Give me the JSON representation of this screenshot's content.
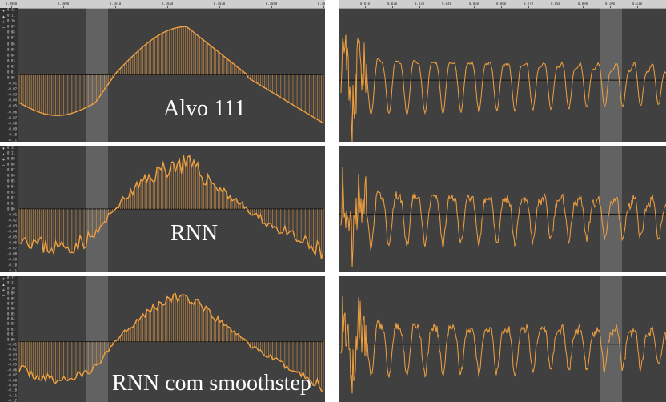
{
  "colors": {
    "background": "#404040",
    "ruler": "#cfcfcf",
    "waveform": "#f0a040",
    "selection": "#ffffff"
  },
  "left_ruler_ticks": [
    "0.0080",
    "0.1000",
    "0.1010",
    "0.1020",
    "0.1030",
    "0.1040",
    "0.1050"
  ],
  "right_ruler_ticks": [
    "0.010",
    "0.020",
    "0.030",
    "0.040",
    "0.050",
    "0.060",
    "0.070",
    "0.080",
    "0.090",
    "0.100",
    "0.110"
  ],
  "left_panels": [
    {
      "label": "Alvo 111",
      "scale": [
        "0.12",
        "0.11",
        "0.10",
        "0.09",
        "0.08",
        "0.07",
        "0.06",
        "0.05",
        "0.04",
        "0.03",
        "0.02",
        "0.01",
        "0.00",
        "-0.01",
        "-0.02",
        "-0.03",
        "-0.04",
        "-0.05",
        "-0.06",
        "-0.07",
        "-0.08",
        "-0.09",
        "-0.10",
        "-0.11"
      ]
    },
    {
      "label": "RNN",
      "scale": [
        "0.12",
        "0.11",
        "0.09",
        "0.08",
        "0.07",
        "0.06",
        "0.05",
        "0.04",
        "0.03",
        "0.02",
        "0.01",
        "0.00",
        "-0.01",
        "-0.02",
        "-0.03",
        "-0.04",
        "-0.05",
        "-0.06",
        "-0.07",
        "-0.08",
        "-0.09",
        "-0.10",
        "-0.11"
      ]
    },
    {
      "label": "RNN com smoothstep",
      "scale": [
        "0.12",
        "0.11",
        "0.10",
        "0.09",
        "0.08",
        "0.07",
        "0.06",
        "0.05",
        "0.04",
        "0.03",
        "0.02",
        "0.01",
        "0.00",
        "-0.01",
        "-0.02",
        "-0.03",
        "-0.04",
        "-0.05",
        "-0.06",
        "-0.07",
        "-0.08",
        "-0.09",
        "-0.10",
        "-0.11",
        "-0.12"
      ]
    }
  ]
}
